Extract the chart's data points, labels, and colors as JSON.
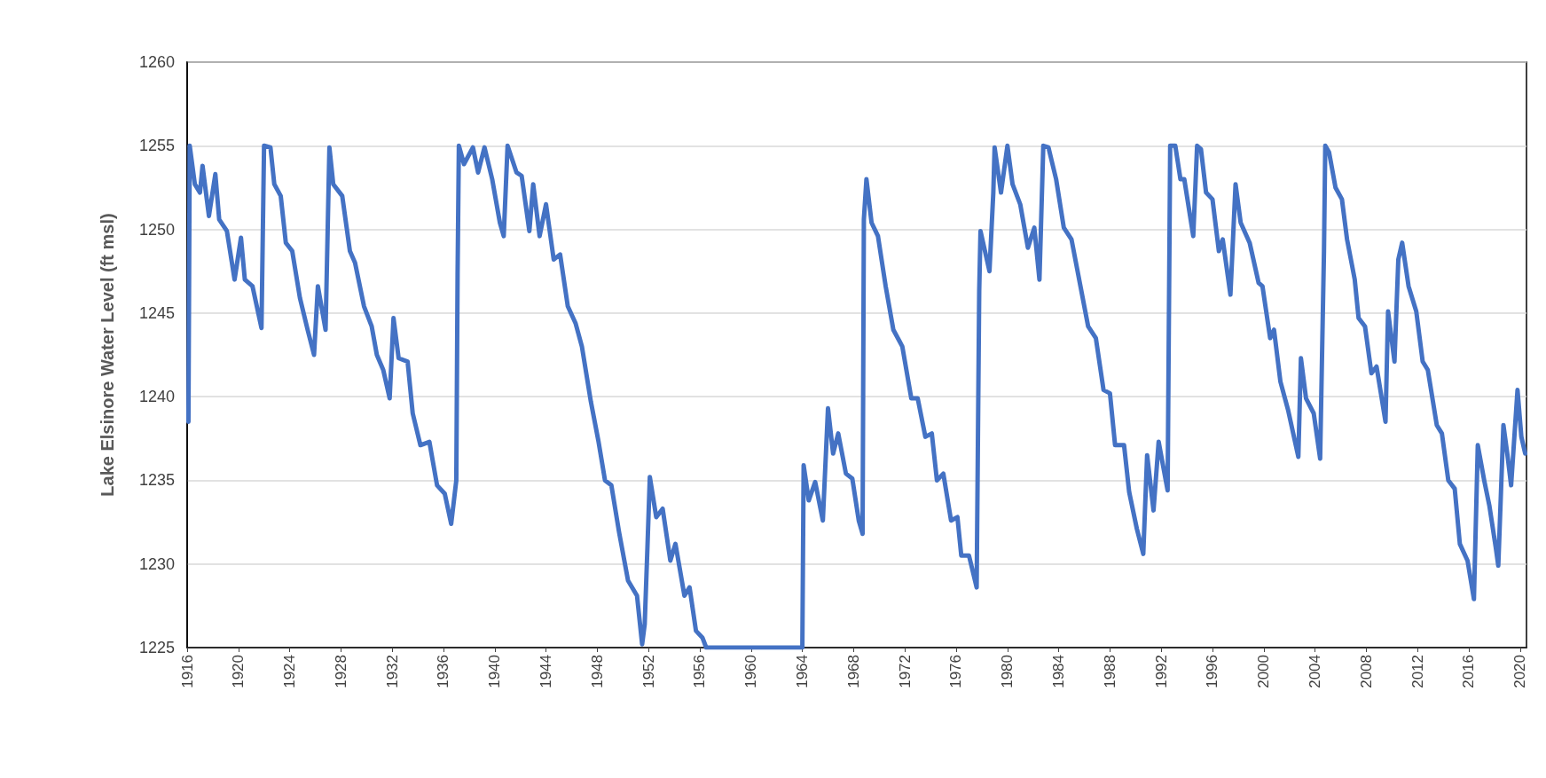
{
  "chart_data": {
    "type": "line",
    "ylabel": "Lake Elsinore Water Level (ft msl)",
    "xlim": [
      1916,
      2020.5
    ],
    "xticks": [
      1916,
      1920,
      1924,
      1928,
      1932,
      1936,
      1940,
      1944,
      1948,
      1952,
      1956,
      1960,
      1964,
      1968,
      1972,
      1976,
      1980,
      1984,
      1988,
      1992,
      1996,
      2000,
      2004,
      2008,
      2012,
      2016,
      2020
    ],
    "ylim": [
      1225,
      1260
    ],
    "yticks": [
      1225,
      1230,
      1235,
      1240,
      1245,
      1250,
      1255,
      1260
    ],
    "grid": "y",
    "marker": "none",
    "line_style": "solid",
    "series": [
      {
        "color": "#4472c4",
        "x": [
          1916.1,
          1916.2,
          1916.6,
          1917.0,
          1917.2,
          1917.7,
          1918.2,
          1918.5,
          1919.1,
          1919.7,
          1920.2,
          1920.5,
          1921.1,
          1921.8,
          1922.0,
          1922.5,
          1922.8,
          1923.3,
          1923.7,
          1924.2,
          1924.8,
          1925.4,
          1925.9,
          1926.2,
          1926.8,
          1927.1,
          1927.4,
          1928.1,
          1928.7,
          1929.1,
          1929.8,
          1930.4,
          1930.8,
          1931.3,
          1931.8,
          1932.1,
          1932.5,
          1933.2,
          1933.6,
          1934.2,
          1934.9,
          1935.5,
          1936.1,
          1936.6,
          1937.0,
          1937.1,
          1937.2,
          1937.6,
          1938.3,
          1938.7,
          1939.2,
          1939.8,
          1940.4,
          1940.7,
          1941.0,
          1941.7,
          1942.1,
          1942.7,
          1943.0,
          1943.5,
          1944.0,
          1944.6,
          1945.1,
          1945.7,
          1946.3,
          1946.8,
          1947.5,
          1948.1,
          1948.6,
          1949.1,
          1949.7,
          1950.4,
          1951.1,
          1951.5,
          1951.7,
          1951.9,
          1952.1,
          1952.6,
          1953.1,
          1953.7,
          1954.1,
          1954.8,
          1955.2,
          1955.7,
          1956.2,
          1956.5,
          1964.0,
          1964.1,
          1964.5,
          1965.0,
          1965.6,
          1966.0,
          1966.4,
          1966.8,
          1967.4,
          1967.9,
          1968.4,
          1968.7,
          1968.8,
          1969.0,
          1969.4,
          1969.9,
          1970.5,
          1971.1,
          1971.8,
          1972.5,
          1973.0,
          1973.6,
          1974.1,
          1974.5,
          1975.0,
          1975.6,
          1976.1,
          1976.4,
          1977.0,
          1977.6,
          1977.8,
          1977.9,
          1978.6,
          1978.9,
          1979.0,
          1979.5,
          1980.0,
          1980.4,
          1981.0,
          1981.6,
          1982.1,
          1982.5,
          1982.8,
          1983.2,
          1983.8,
          1984.4,
          1985.0,
          1985.7,
          1986.3,
          1986.9,
          1987.5,
          1988.0,
          1988.4,
          1989.1,
          1989.5,
          1990.1,
          1990.6,
          1990.9,
          1991.4,
          1991.8,
          1992.5,
          1992.7,
          1993.1,
          1993.5,
          1993.8,
          1994.5,
          1994.8,
          1995.1,
          1995.5,
          1996.0,
          1996.5,
          1996.8,
          1997.4,
          1997.8,
          1998.2,
          1998.9,
          1999.6,
          1999.9,
          2000.5,
          2000.8,
          2001.3,
          2001.9,
          2002.7,
          2002.9,
          2003.3,
          2003.9,
          2004.4,
          2004.7,
          2004.8,
          2005.1,
          2005.6,
          2006.1,
          2006.5,
          2007.1,
          2007.4,
          2007.9,
          2008.4,
          2008.8,
          2009.5,
          2009.7,
          2010.2,
          2010.5,
          2010.8,
          2011.3,
          2011.9,
          2012.4,
          2012.8,
          2013.5,
          2013.9,
          2014.4,
          2014.9,
          2015.3,
          2015.9,
          2016.4,
          2016.7,
          2017.2,
          2017.6,
          2018.1,
          2018.3,
          2018.7,
          2019.0,
          2019.3,
          2019.8,
          2020.1,
          2020.4
        ],
        "values": [
          1238.5,
          1255,
          1252.7,
          1252.2,
          1253.8,
          1250.8,
          1253.3,
          1250.6,
          1249.9,
          1247,
          1249.5,
          1247,
          1246.6,
          1244.1,
          1255,
          1254.9,
          1252.7,
          1252,
          1249.2,
          1248.7,
          1245.9,
          1244,
          1242.5,
          1246.6,
          1244,
          1254.9,
          1252.7,
          1252,
          1248.7,
          1248,
          1245.4,
          1244.2,
          1242.5,
          1241.6,
          1239.9,
          1244.7,
          1242.3,
          1242.1,
          1239,
          1237.1,
          1237.3,
          1234.7,
          1234.2,
          1232.4,
          1235,
          1247.3,
          1255,
          1253.9,
          1254.9,
          1253.4,
          1254.9,
          1253,
          1250.4,
          1249.6,
          1255,
          1253.4,
          1253.2,
          1249.9,
          1252.7,
          1249.6,
          1251.5,
          1248.2,
          1248.5,
          1245.4,
          1244.4,
          1243,
          1239.7,
          1237.3,
          1235,
          1234.7,
          1231.9,
          1229,
          1228.1,
          1225.2,
          1226.4,
          1230.7,
          1235.2,
          1232.8,
          1233.3,
          1230.2,
          1231.2,
          1228.1,
          1228.6,
          1226,
          1225.6,
          1225,
          1225,
          1235.9,
          1233.8,
          1234.9,
          1232.6,
          1239.3,
          1236.6,
          1237.8,
          1235.4,
          1235.1,
          1232.6,
          1231.8,
          1250.6,
          1253,
          1250.4,
          1249.6,
          1246.6,
          1244,
          1243,
          1239.9,
          1239.9,
          1237.6,
          1237.8,
          1235,
          1235.4,
          1232.6,
          1232.8,
          1230.5,
          1230.5,
          1228.6,
          1246.3,
          1249.9,
          1247.5,
          1252.2,
          1254.9,
          1252.2,
          1255,
          1252.7,
          1251.5,
          1248.9,
          1250.1,
          1247,
          1255,
          1254.9,
          1253,
          1250.1,
          1249.4,
          1246.6,
          1244.2,
          1243.5,
          1240.4,
          1240.2,
          1237.1,
          1237.1,
          1234.3,
          1232.1,
          1230.6,
          1236.5,
          1233.2,
          1237.3,
          1234.4,
          1255,
          1255,
          1253,
          1253,
          1249.6,
          1255,
          1254.8,
          1252.2,
          1251.8,
          1248.7,
          1249.4,
          1246.1,
          1252.7,
          1250.4,
          1249.2,
          1246.8,
          1246.6,
          1243.5,
          1244,
          1240.9,
          1239.2,
          1236.4,
          1242.3,
          1239.9,
          1239,
          1236.3,
          1248.7,
          1255,
          1254.6,
          1252.5,
          1251.8,
          1249.4,
          1247,
          1244.7,
          1244.2,
          1241.4,
          1241.8,
          1238.5,
          1245.1,
          1242.1,
          1248.2,
          1249.2,
          1246.6,
          1245.1,
          1242.1,
          1241.6,
          1238.3,
          1237.8,
          1235,
          1234.5,
          1231.2,
          1230.2,
          1227.9,
          1237.1,
          1235,
          1233.5,
          1231,
          1229.9,
          1238.3,
          1236.6,
          1234.7,
          1240.4,
          1237.6,
          1236.6
        ]
      }
    ]
  }
}
